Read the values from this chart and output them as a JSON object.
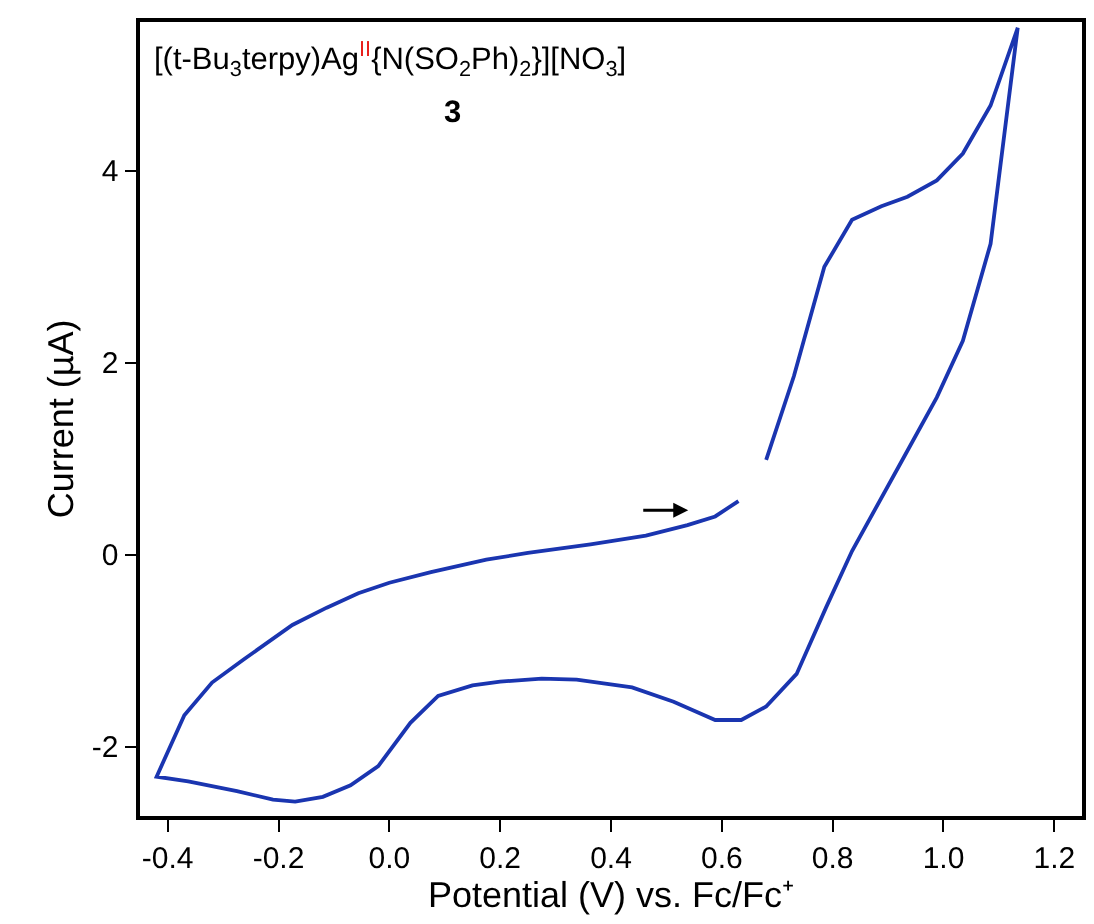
{
  "chart_data": {
    "type": "line",
    "title": "[(t-Bu$_{3}$terpy)Ag$^{II}${N(SO$_{2}$Ph)$_{2}$}][NO$_{3}$]",
    "subtitle": "3",
    "xlabel": "Potential (V) vs. Fc/Fc⁺",
    "ylabel": "Current (µA)",
    "xlim": [
      -0.45,
      1.25
    ],
    "ylim": [
      -2.72,
      5.55
    ],
    "xticks": [
      {
        "value": -0.4,
        "label": "-0.4"
      },
      {
        "value": -0.2,
        "label": "-0.2"
      },
      {
        "value": 0,
        "label": "0.0"
      },
      {
        "value": 0.2,
        "label": "0.2"
      },
      {
        "value": 0.4,
        "label": "0.4"
      },
      {
        "value": 0.6,
        "label": "0.6"
      },
      {
        "value": 0.8,
        "label": "0.8"
      },
      {
        "value": 1,
        "label": "1.0"
      },
      {
        "value": 1.2,
        "label": "1.2"
      }
    ],
    "yticks": [
      -2,
      0,
      2,
      4
    ],
    "marker": "none",
    "line_style": "solid",
    "series": [
      {
        "color": "#1a35b0",
        "x": [
          0.68,
          0.73,
          0.785,
          0.835,
          0.888,
          0.935,
          0.988,
          1.035,
          1.085,
          1.134,
          1.085,
          1.035,
          0.988,
          0.925,
          0.835,
          0.788,
          0.735,
          0.68,
          0.635,
          0.588,
          0.513,
          0.438,
          0.338,
          0.275,
          0.2,
          0.15,
          0.088,
          0.038,
          -0.02,
          -0.07,
          -0.12,
          -0.17,
          -0.21,
          -0.275,
          -0.363,
          -0.42,
          -0.37,
          -0.32,
          -0.263,
          -0.175,
          -0.113,
          -0.056,
          0.0,
          0.075,
          0.175,
          0.25,
          0.363,
          0.463,
          0.538,
          0.588,
          0.63
        ],
        "values": [
          0.99,
          1.86,
          3.0,
          3.49,
          3.63,
          3.73,
          3.9,
          4.18,
          4.68,
          5.49,
          3.24,
          2.23,
          1.64,
          0.98,
          0.04,
          -0.55,
          -1.24,
          -1.58,
          -1.72,
          -1.72,
          -1.53,
          -1.38,
          -1.3,
          -1.29,
          -1.32,
          -1.36,
          -1.47,
          -1.75,
          -2.2,
          -2.4,
          -2.52,
          -2.57,
          -2.55,
          -2.46,
          -2.36,
          -2.31,
          -1.67,
          -1.33,
          -1.09,
          -0.73,
          -0.55,
          -0.4,
          -0.29,
          -0.18,
          -0.05,
          0.02,
          0.11,
          0.2,
          0.31,
          0.4,
          0.56
        ]
      }
    ]
  }
}
